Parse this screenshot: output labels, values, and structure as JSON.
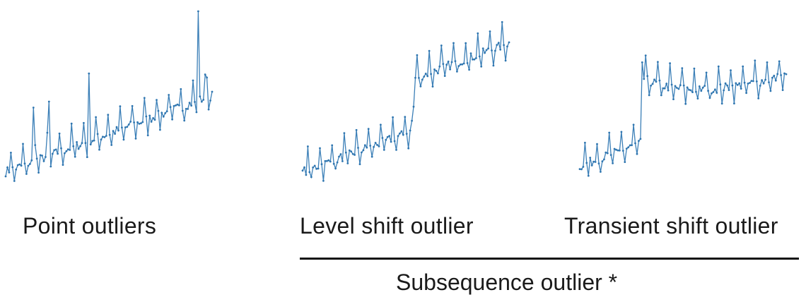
{
  "colors": {
    "series": "#3b7fb7",
    "marker": "#2f76b0",
    "rule": "#111111"
  },
  "chart_data": [
    {
      "type": "line",
      "title": "Point outliers",
      "n": 120,
      "ylim": [
        0,
        9
      ],
      "base": {
        "start": 1.0,
        "slope": 0.032,
        "period": 7,
        "amp": 0.45
      },
      "outliers": [
        {
          "x": 16,
          "y": 4.2
        },
        {
          "x": 25,
          "y": 4.5
        },
        {
          "x": 48,
          "y": 5.9
        },
        {
          "x": 111,
          "y": 9.0
        },
        {
          "x": 116,
          "y": 5.7
        }
      ]
    },
    {
      "type": "line",
      "title": "Level shift outlier",
      "n": 120,
      "ylim": [
        0,
        9
      ],
      "base": {
        "start": 1.0,
        "slope": 0.032,
        "period": 7,
        "amp": 0.45
      },
      "level_shift": {
        "from": 65,
        "to": 120,
        "delta": 2.6
      }
    },
    {
      "type": "line",
      "title": "Transient shift outlier",
      "n": 120,
      "ylim": [
        0,
        9
      ],
      "base": {
        "start": 1.0,
        "slope": 0.032,
        "period": 7,
        "amp": 0.45
      },
      "transient": {
        "at": 36,
        "delta": 3.2,
        "decay": 0.9
      }
    }
  ],
  "captions": {
    "point": "Point outliers",
    "level": "Level shift outlier",
    "transient": "Transient shift outlier",
    "group": "Subsequence outlier *"
  }
}
